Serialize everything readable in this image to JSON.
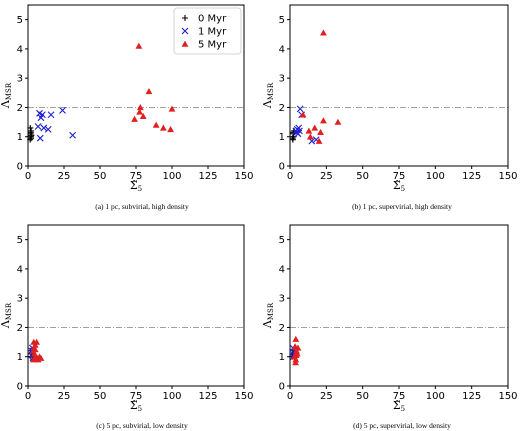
{
  "chart_data": [
    {
      "type": "scatter",
      "caption": "(a) 1 pc, subvirial, high density",
      "xlabel": "Σ̃5",
      "ylabel": "ΛMSR",
      "xlim": [
        0,
        150
      ],
      "ylim": [
        0,
        5.5
      ],
      "xticks": [
        0,
        25,
        50,
        75,
        100,
        125,
        150
      ],
      "yticks": [
        0,
        1,
        2,
        3,
        4,
        5
      ],
      "reference_y": 2,
      "legend": "top-right",
      "series": [
        {
          "name": "0 Myr",
          "marker": "plus",
          "color": "#000000",
          "points": [
            [
              1.5,
              0.9
            ],
            [
              2,
              1.0
            ],
            [
              1.8,
              1.1
            ],
            [
              2.2,
              1.2
            ],
            [
              1.6,
              1.3
            ],
            [
              2.4,
              1.05
            ],
            [
              2.1,
              0.95
            ],
            [
              1.9,
              1.15
            ]
          ]
        },
        {
          "name": "1 Myr",
          "marker": "x",
          "color": "#1f1fd0",
          "points": [
            [
              8,
              1.8
            ],
            [
              9,
              1.65
            ],
            [
              10,
              1.75
            ],
            [
              11,
              1.3
            ],
            [
              7,
              1.35
            ],
            [
              14,
              1.25
            ],
            [
              16,
              1.75
            ],
            [
              24,
              1.9
            ],
            [
              31,
              1.05
            ],
            [
              8.5,
              0.95
            ]
          ]
        },
        {
          "name": "5 Myr",
          "marker": "triangle",
          "color": "#e02020",
          "points": [
            [
              77,
              4.1
            ],
            [
              78,
              2.0
            ],
            [
              77.5,
              1.85
            ],
            [
              84,
              2.55
            ],
            [
              74,
              1.6
            ],
            [
              80,
              1.7
            ],
            [
              89,
              1.4
            ],
            [
              94,
              1.3
            ],
            [
              99,
              1.25
            ],
            [
              100,
              1.95
            ]
          ]
        }
      ]
    },
    {
      "type": "scatter",
      "caption": "(b) 1 pc, supervirial, high density",
      "xlabel": "Σ̃5",
      "ylabel": "ΛMSR",
      "xlim": [
        0,
        150
      ],
      "ylim": [
        0,
        5.5
      ],
      "xticks": [
        0,
        25,
        50,
        75,
        100,
        125,
        150
      ],
      "yticks": [
        0,
        1,
        2,
        3,
        4,
        5
      ],
      "reference_y": 2,
      "series": [
        {
          "name": "0 Myr",
          "marker": "plus",
          "color": "#000000",
          "points": [
            [
              2,
              0.9
            ],
            [
              2.5,
              1.0
            ],
            [
              2.2,
              1.1
            ],
            [
              2.8,
              1.2
            ],
            [
              1.8,
              0.95
            ],
            [
              2.4,
              1.15
            ]
          ]
        },
        {
          "name": "1 Myr",
          "marker": "x",
          "color": "#1f1fd0",
          "points": [
            [
              4,
              1.2
            ],
            [
              5,
              1.25
            ],
            [
              6,
              1.3
            ],
            [
              7,
              1.95
            ],
            [
              8,
              1.75
            ],
            [
              5.5,
              1.1
            ],
            [
              6.5,
              1.2
            ],
            [
              15,
              0.85
            ],
            [
              18,
              0.9
            ],
            [
              4.5,
              1.15
            ]
          ]
        },
        {
          "name": "5 Myr",
          "marker": "triangle",
          "color": "#e02020",
          "points": [
            [
              23,
              4.55
            ],
            [
              9,
              1.75
            ],
            [
              13,
              1.2
            ],
            [
              17,
              1.3
            ],
            [
              21,
              1.15
            ],
            [
              23,
              1.55
            ],
            [
              33,
              1.5
            ],
            [
              20,
              0.85
            ],
            [
              14,
              1.0
            ]
          ]
        }
      ]
    },
    {
      "type": "scatter",
      "caption": "(c) 5 pc, subvirial, low density",
      "xlabel": "Σ̃5",
      "ylabel": "ΛMSR",
      "xlim": [
        0,
        150
      ],
      "ylim": [
        0,
        5.5
      ],
      "xticks": [
        0,
        25,
        50,
        75,
        100,
        125,
        150
      ],
      "yticks": [
        0,
        1,
        2,
        3,
        4,
        5
      ],
      "reference_y": 2,
      "series": [
        {
          "name": "0 Myr",
          "marker": "plus",
          "color": "#000000",
          "points": [
            [
              2,
              1.0
            ],
            [
              2.3,
              1.1
            ],
            [
              1.9,
              1.2
            ]
          ]
        },
        {
          "name": "1 Myr",
          "marker": "x",
          "color": "#1f1fd0",
          "points": [
            [
              2.5,
              1.2
            ],
            [
              3,
              1.3
            ],
            [
              2.8,
              1.05
            ],
            [
              3.5,
              0.95
            ]
          ]
        },
        {
          "name": "5 Myr",
          "marker": "triangle",
          "color": "#e02020",
          "points": [
            [
              4,
              1.5
            ],
            [
              5,
              1.4
            ],
            [
              6,
              1.5
            ],
            [
              3.5,
              1.2
            ],
            [
              4.5,
              1.1
            ],
            [
              5.5,
              1.0
            ],
            [
              6.5,
              0.95
            ],
            [
              7,
              0.9
            ],
            [
              8,
              1.0
            ],
            [
              4,
              0.9
            ],
            [
              5,
              1.25
            ],
            [
              9,
              0.95
            ]
          ]
        }
      ]
    },
    {
      "type": "scatter",
      "caption": "(d) 5 pc, supervirial, low density",
      "xlabel": "Σ̃5",
      "ylabel": "ΛMSR",
      "xlim": [
        0,
        150
      ],
      "ylim": [
        0,
        5.5
      ],
      "xticks": [
        0,
        25,
        50,
        75,
        100,
        125,
        150
      ],
      "yticks": [
        0,
        1,
        2,
        3,
        4,
        5
      ],
      "reference_y": 2,
      "series": [
        {
          "name": "0 Myr",
          "marker": "plus",
          "color": "#000000",
          "points": [
            [
              1.5,
              1.0
            ],
            [
              1.8,
              1.1
            ],
            [
              2.0,
              1.2
            ]
          ]
        },
        {
          "name": "1 Myr",
          "marker": "x",
          "color": "#1f1fd0",
          "points": [
            [
              2,
              1.3
            ],
            [
              2.5,
              1.15
            ],
            [
              2.2,
              1.0
            ],
            [
              2.8,
              1.05
            ]
          ]
        },
        {
          "name": "5 Myr",
          "marker": "triangle",
          "color": "#e02020",
          "points": [
            [
              4,
              1.6
            ],
            [
              3.5,
              1.35
            ],
            [
              4.5,
              1.2
            ],
            [
              3,
              1.0
            ],
            [
              4,
              0.9
            ],
            [
              5,
              1.1
            ],
            [
              5.5,
              1.3
            ],
            [
              3.8,
              0.8
            ],
            [
              4.2,
              1.05
            ]
          ]
        }
      ]
    }
  ]
}
